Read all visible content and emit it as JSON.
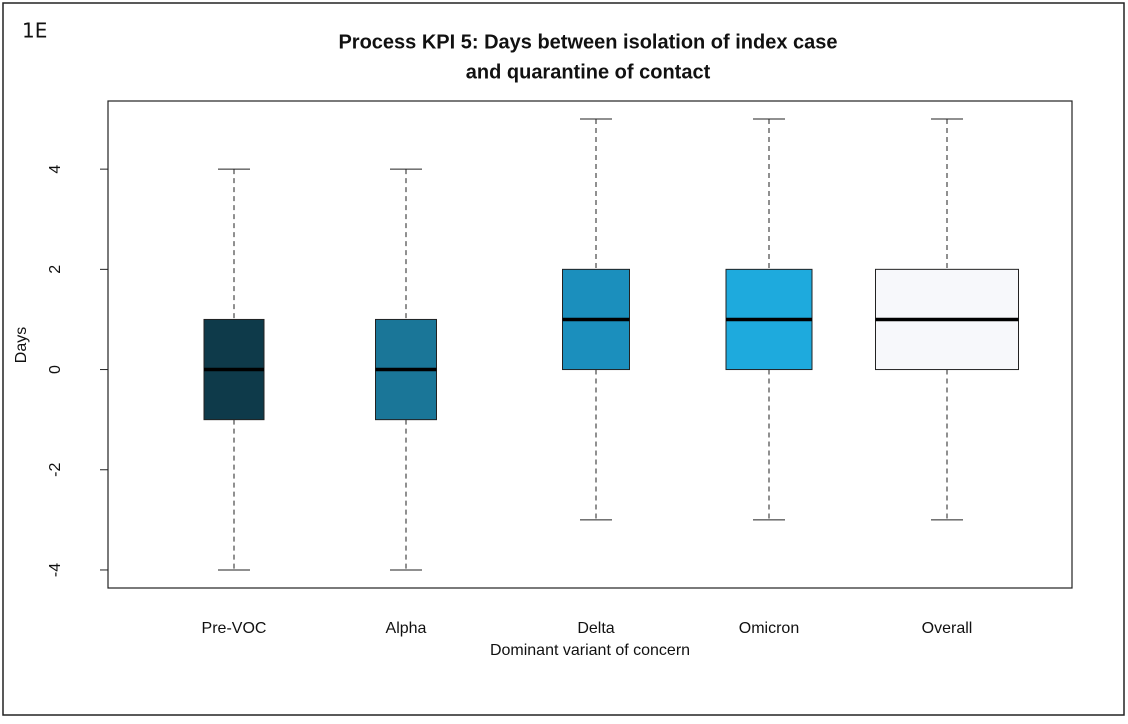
{
  "panel_label": "1E",
  "chart_data": {
    "type": "box",
    "title": [
      "Process KPI 5: Days between isolation of index case",
      "and quarantine of contact"
    ],
    "x_label": "Dominant variant of concern",
    "y_label": "Days",
    "categories": [
      "Pre-VOC",
      "Alpha",
      "Delta",
      "Omicron",
      "Overall"
    ],
    "whisker_low": [
      -4,
      -4,
      -3,
      -3,
      -3
    ],
    "q1": [
      -1,
      -1,
      0,
      0,
      0
    ],
    "median": [
      0,
      0,
      1,
      1,
      1
    ],
    "q3": [
      1,
      1,
      2,
      2,
      2
    ],
    "whisker_high": [
      4,
      4,
      5,
      5,
      5
    ],
    "colors": [
      "#0e3a4a",
      "#1a7698",
      "#1b8fbd",
      "#1eaadd",
      "#f7f8fb"
    ],
    "ylim": [
      -4.36,
      5.36
    ],
    "yticks": [
      -4,
      -2,
      0,
      2,
      4
    ]
  }
}
